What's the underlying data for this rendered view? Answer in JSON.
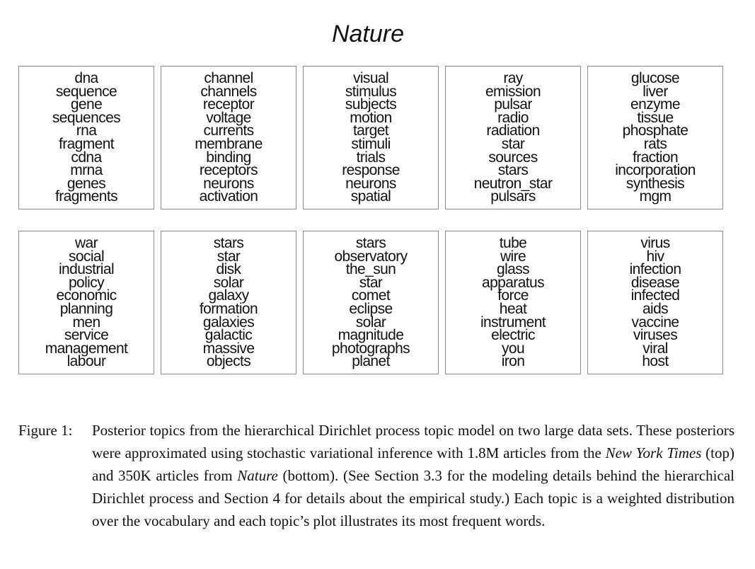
{
  "figure": {
    "title": "Nature",
    "top_row": [
      [
        "dna",
        "sequence",
        "gene",
        "sequences",
        "rna",
        "fragment",
        "cdna",
        "mrna",
        "genes",
        "fragments"
      ],
      [
        "channel",
        "channels",
        "receptor",
        "voltage",
        "currents",
        "membrane",
        "binding",
        "receptors",
        "neurons",
        "activation"
      ],
      [
        "visual",
        "stimulus",
        "subjects",
        "motion",
        "target",
        "stimuli",
        "trials",
        "response",
        "neurons",
        "spatial"
      ],
      [
        "ray",
        "emission",
        "pulsar",
        "radio",
        "radiation",
        "star",
        "sources",
        "stars",
        "neutron_star",
        "pulsars"
      ],
      [
        "glucose",
        "liver",
        "enzyme",
        "tissue",
        "phosphate",
        "rats",
        "fraction",
        "incorporation",
        "synthesis",
        "mgm"
      ]
    ],
    "bottom_row": [
      [
        "war",
        "social",
        "industrial",
        "policy",
        "economic",
        "planning",
        "men",
        "service",
        "management",
        "labour"
      ],
      [
        "stars",
        "star",
        "disk",
        "solar",
        "galaxy",
        "formation",
        "galaxies",
        "galactic",
        "massive",
        "objects"
      ],
      [
        "stars",
        "observatory",
        "the_sun",
        "star",
        "comet",
        "eclipse",
        "solar",
        "magnitude",
        "photographs",
        "planet"
      ],
      [
        "tube",
        "wire",
        "glass",
        "apparatus",
        "force",
        "heat",
        "instrument",
        "electric",
        "you",
        "iron"
      ],
      [
        "virus",
        "hiv",
        "infection",
        "disease",
        "infected",
        "aids",
        "vaccine",
        "viruses",
        "viral",
        "host"
      ]
    ]
  },
  "caption": {
    "label": "Figure 1:",
    "text_1": "Posterior topics from the hierarchical Dirichlet process topic model on two large data sets. These posteriors were approximated using stochastic variational inference with 1.8M articles from the ",
    "italic_1": "New York Times",
    "text_2": " (top) and 350K articles from ",
    "italic_2": "Nature",
    "text_3": " (bottom). (See Section 3.3 for the modeling details behind the hierarchical Dirichlet process and Section 4 for details about the empirical study.) Each topic is a weighted distribution over the vocabulary and each topic’s plot illustrates its most frequent words."
  }
}
